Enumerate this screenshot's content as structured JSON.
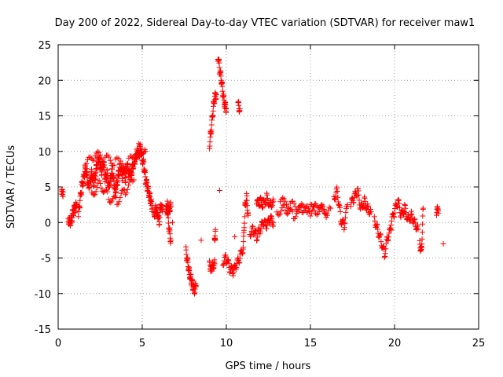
{
  "chart_data": {
    "type": "scatter",
    "title": "Day 200 of 2022, Sidereal Day-to-day VTEC variation (SDTVAR) for receiver maw1",
    "xlabel": "GPS time / hours",
    "ylabel": "SDTVAR / TECUs",
    "xlim": [
      0,
      25
    ],
    "ylim": [
      -15,
      25
    ],
    "xticks": [
      0,
      5,
      10,
      15,
      20,
      25
    ],
    "yticks": [
      -15,
      -10,
      -5,
      0,
      5,
      10,
      15,
      20,
      25
    ],
    "grid": true,
    "marker": "+",
    "color": "#ff0000",
    "series": [
      {
        "name": "SDTVAR",
        "segments": [
          {
            "x": [
              0.2,
              0.3
            ],
            "y": [
              4.0,
              4.3
            ]
          },
          {
            "x": [
              0.6,
              0.7,
              0.8,
              0.9,
              1.0,
              1.1
            ],
            "y": [
              0.5,
              0.0,
              0.5,
              1.5,
              2.0,
              2.5
            ]
          },
          {
            "x": [
              1.2,
              1.3,
              1.4,
              1.5,
              1.6,
              1.7,
              1.8,
              1.9,
              2.0,
              2.1,
              2.2,
              2.3,
              2.4,
              2.5,
              2.6,
              2.7,
              2.8,
              2.9,
              3.0,
              3.1,
              3.2,
              3.3,
              3.4,
              3.5,
              3.6,
              3.7,
              3.8,
              3.9,
              4.0,
              4.1,
              4.2,
              4.3,
              4.4,
              4.5,
              4.6,
              4.7,
              4.8,
              4.9,
              5.0,
              5.1,
              5.2,
              5.3,
              5.4,
              5.5,
              5.6
            ],
            "y": [
              1.0,
              3.0,
              5.0,
              6.0,
              7.5,
              7.0,
              5.0,
              6.0,
              7.0,
              5.5,
              6.5,
              8.0,
              9.0,
              8.0,
              7.0,
              8.5,
              6.0,
              7.0,
              5.0,
              6.0,
              7.5,
              6.0,
              4.5,
              5.5,
              7.0,
              8.0,
              6.5,
              7.5,
              6.0,
              8.0,
              7.0,
              6.5,
              7.5,
              8.5,
              9.0,
              10.0,
              9.5,
              10.5,
              9.0,
              8.0,
              6.0,
              5.0,
              4.0,
              3.0,
              2.0
            ]
          },
          {
            "x": [
              2.0,
              2.5,
              3.0,
              3.5,
              4.0,
              4.5
            ],
            "y": [
              4.0,
              5.5,
              3.5,
              3.0,
              4.5,
              6.0
            ]
          },
          {
            "x": [
              1.6,
              2.2,
              2.8,
              3.4,
              4.2,
              4.8,
              5.2
            ],
            "y": [
              8.0,
              9.5,
              9.0,
              8.5,
              8.5,
              10.5,
              10.0
            ]
          },
          {
            "x": [
              5.7,
              5.8,
              5.9,
              6.0,
              6.1,
              6.2
            ],
            "y": [
              1.0,
              2.0,
              1.5,
              0.0,
              2.5,
              1.5
            ]
          },
          {
            "x": [
              6.4,
              6.5,
              6.6,
              6.7
            ],
            "y": [
              2.0,
              1.5,
              -1.0,
              -2.5
            ]
          },
          {
            "x": [
              6.5,
              6.6,
              6.7
            ],
            "y": [
              2.5,
              2.0,
              2.3
            ]
          },
          {
            "x": [
              6.8
            ],
            "y": [
              0.0
            ]
          },
          {
            "x": [
              7.6,
              7.7,
              7.8,
              7.9,
              8.0,
              8.1,
              8.2
            ],
            "y": [
              -4.0,
              -5.5,
              -7.0,
              -8.0,
              -8.8,
              -9.5,
              -9.0
            ]
          },
          {
            "x": [
              8.5
            ],
            "y": [
              -2.5
            ]
          },
          {
            "x": [
              9.0,
              9.1,
              9.2,
              9.3
            ],
            "y": [
              -6.0,
              -6.5,
              -6.0,
              -5.8
            ]
          },
          {
            "x": [
              9.0,
              9.1,
              9.2,
              9.3,
              9.4
            ],
            "y": [
              11.0,
              13.0,
              15.5,
              17.5,
              18.0
            ]
          },
          {
            "x": [
              9.3,
              9.35
            ],
            "y": [
              -3.0,
              -1.0
            ]
          },
          {
            "x": [
              9.5,
              9.6,
              9.7,
              9.8,
              9.9,
              10.0
            ],
            "y": [
              23.5,
              21.5,
              20.0,
              18.0,
              16.5,
              16.0
            ]
          },
          {
            "x": [
              9.6
            ],
            "y": [
              4.5
            ]
          },
          {
            "x": [
              9.8,
              10.0,
              10.2,
              10.4,
              10.6,
              10.8,
              11.0
            ],
            "y": [
              -5.5,
              -5.0,
              -6.5,
              -7.0,
              -6.0,
              -5.0,
              -3.5
            ]
          },
          {
            "x": [
              10.7,
              10.8
            ],
            "y": [
              16.5,
              16.0
            ]
          },
          {
            "x": [
              10.5
            ],
            "y": [
              -2.0
            ]
          },
          {
            "x": [
              11.0,
              11.1,
              11.2,
              11.3
            ],
            "y": [
              -4.0,
              2.0,
              3.5,
              1.0
            ]
          },
          {
            "x": [
              11.4,
              11.6,
              11.8,
              12.0,
              12.2,
              12.4,
              12.6,
              12.8
            ],
            "y": [
              -1.5,
              -1.0,
              -2.0,
              -1.0,
              0.0,
              -0.5,
              0.5,
              0.0
            ]
          },
          {
            "x": [
              11.8,
              12.0,
              12.2,
              12.4,
              12.6,
              12.8
            ],
            "y": [
              2.5,
              3.0,
              2.5,
              3.5,
              2.5,
              3.0
            ]
          },
          {
            "x": [
              13.0,
              13.5,
              14.0,
              14.5,
              15.0,
              15.5,
              16.0
            ],
            "y": [
              1.5,
              2.0,
              1.0,
              2.0,
              1.5,
              2.5,
              1.0
            ]
          },
          {
            "x": [
              13.2,
              13.8,
              14.4,
              15.0,
              15.6,
              16.2
            ],
            "y": [
              3.0,
              2.5,
              2.0,
              2.0,
              1.5,
              2.0
            ]
          },
          {
            "x": [
              16.4,
              16.6,
              16.8,
              17.0,
              17.2
            ],
            "y": [
              3.5,
              4.5,
              0.5,
              -0.5,
              2.5
            ]
          },
          {
            "x": [
              17.4,
              17.6,
              17.8,
              18.0,
              18.2,
              18.4,
              18.6
            ],
            "y": [
              2.5,
              3.5,
              4.5,
              2.0,
              3.0,
              2.0,
              1.5
            ]
          },
          {
            "x": [
              18.8,
              19.0,
              19.2,
              19.4,
              19.6,
              19.8
            ],
            "y": [
              0.5,
              -1.0,
              -2.5,
              -4.5,
              -2.0,
              -1.0
            ]
          },
          {
            "x": [
              19.8,
              20.0,
              20.2,
              20.4,
              20.6,
              20.8,
              21.0,
              21.2,
              21.4
            ],
            "y": [
              0.0,
              1.5,
              3.0,
              1.0,
              2.0,
              0.5,
              1.0,
              0.0,
              -1.0
            ]
          },
          {
            "x": [
              21.5,
              21.6,
              21.7
            ],
            "y": [
              -3.0,
              -4.0,
              2.0
            ]
          },
          {
            "x": [
              22.5,
              22.6
            ],
            "y": [
              1.5,
              1.8
            ]
          },
          {
            "x": [
              22.9
            ],
            "y": [
              -3.0
            ]
          }
        ]
      }
    ]
  }
}
